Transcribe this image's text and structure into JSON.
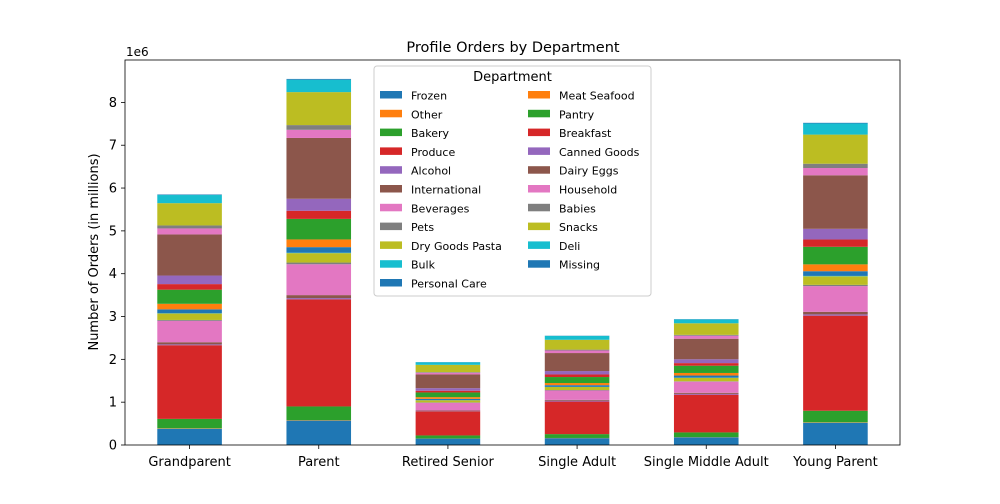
{
  "chart_data": {
    "type": "bar",
    "stacked": true,
    "title": "Profile Orders by Department",
    "xlabel": "",
    "ylabel": "Number of Orders (in millions)",
    "y_offset_label": "1e6",
    "ylim": [
      0,
      8.99
    ],
    "yticks": [
      "0",
      "1",
      "2",
      "3",
      "4",
      "5",
      "6",
      "7",
      "8"
    ],
    "grid": false,
    "legend_title": "Department",
    "legend_position": "top-center",
    "categories": [
      "Grandparent",
      "Parent",
      "Retired Senior",
      "Single Adult",
      "Single Middle Adult",
      "Young Parent"
    ],
    "series": [
      {
        "name": "Frozen",
        "color": "#1f77b4",
        "values": [
          0.38,
          0.57,
          0.15,
          0.16,
          0.18,
          0.52
        ]
      },
      {
        "name": "Other",
        "color": "#ff7f0e",
        "values": [
          0.01,
          0.01,
          0.003,
          0.004,
          0.004,
          0.01
        ]
      },
      {
        "name": "Bakery",
        "color": "#2ca02c",
        "values": [
          0.22,
          0.32,
          0.07,
          0.09,
          0.11,
          0.27
        ]
      },
      {
        "name": "Produce",
        "color": "#d62728",
        "values": [
          1.72,
          2.5,
          0.56,
          0.76,
          0.88,
          2.22
        ]
      },
      {
        "name": "Alcohol",
        "color": "#9467bd",
        "values": [
          0.02,
          0.03,
          0.007,
          0.02,
          0.02,
          0.03
        ]
      },
      {
        "name": "International",
        "color": "#8c564b",
        "values": [
          0.05,
          0.07,
          0.015,
          0.02,
          0.025,
          0.06
        ]
      },
      {
        "name": "Beverages",
        "color": "#e377c2",
        "values": [
          0.5,
          0.72,
          0.18,
          0.22,
          0.26,
          0.6
        ]
      },
      {
        "name": "Pets",
        "color": "#7f7f7f",
        "values": [
          0.02,
          0.04,
          0.01,
          0.01,
          0.01,
          0.03
        ]
      },
      {
        "name": "Dry Goods Pasta",
        "color": "#bcbd22",
        "values": [
          0.15,
          0.22,
          0.05,
          0.07,
          0.08,
          0.2
        ]
      },
      {
        "name": "Bulk",
        "color": "#17becf",
        "values": [
          0.007,
          0.01,
          0.002,
          0.003,
          0.003,
          0.008
        ]
      },
      {
        "name": "Personal Care",
        "color": "#1f77b4",
        "values": [
          0.09,
          0.13,
          0.03,
          0.04,
          0.05,
          0.11
        ]
      },
      {
        "name": "Meat Seafood",
        "color": "#ff7f0e",
        "values": [
          0.13,
          0.18,
          0.04,
          0.05,
          0.06,
          0.16
        ]
      },
      {
        "name": "Pantry",
        "color": "#2ca02c",
        "values": [
          0.33,
          0.48,
          0.11,
          0.14,
          0.17,
          0.41
        ]
      },
      {
        "name": "Breakfast",
        "color": "#d62728",
        "values": [
          0.13,
          0.19,
          0.04,
          0.06,
          0.06,
          0.17
        ]
      },
      {
        "name": "Canned Goods",
        "color": "#9467bd",
        "values": [
          0.2,
          0.28,
          0.06,
          0.08,
          0.09,
          0.25
        ]
      },
      {
        "name": "Dairy Eggs",
        "color": "#8c564b",
        "values": [
          0.96,
          1.42,
          0.32,
          0.42,
          0.48,
          1.25
        ]
      },
      {
        "name": "Household",
        "color": "#e377c2",
        "values": [
          0.14,
          0.19,
          0.04,
          0.06,
          0.07,
          0.17
        ]
      },
      {
        "name": "Babies",
        "color": "#7f7f7f",
        "values": [
          0.07,
          0.11,
          0.015,
          0.02,
          0.02,
          0.1
        ]
      },
      {
        "name": "Snacks",
        "color": "#bcbd22",
        "values": [
          0.52,
          0.77,
          0.17,
          0.23,
          0.27,
          0.68
        ]
      },
      {
        "name": "Deli",
        "color": "#17becf",
        "values": [
          0.19,
          0.29,
          0.06,
          0.09,
          0.09,
          0.26
        ]
      },
      {
        "name": "Missing",
        "color": "#1f77b4",
        "values": [
          0.012,
          0.018,
          0.004,
          0.005,
          0.006,
          0.015
        ]
      }
    ]
  }
}
